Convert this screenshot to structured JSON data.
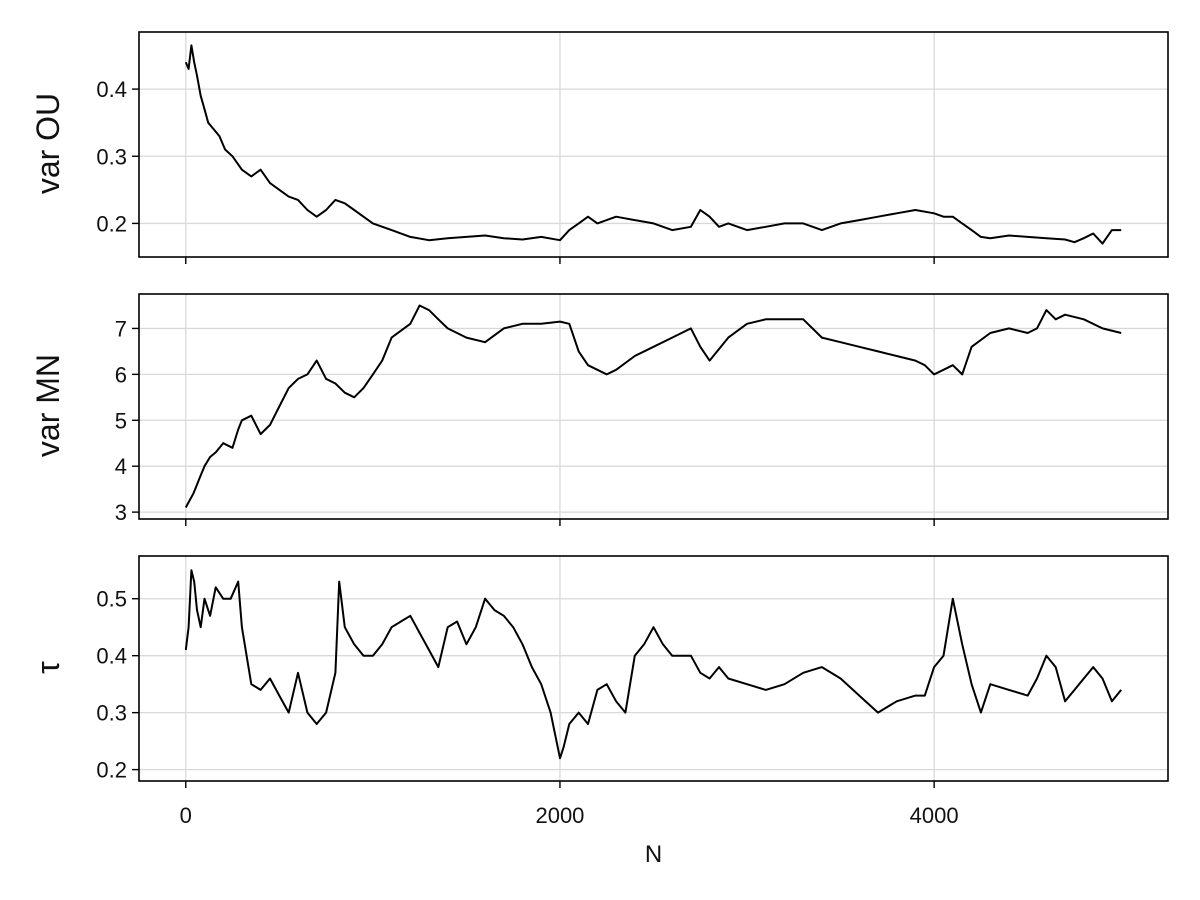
{
  "chart_data": [
    {
      "type": "line",
      "title": "",
      "xlabel": "",
      "ylabel": "var OU",
      "xlim": [
        -250,
        5250
      ],
      "ylim": [
        0.15,
        0.485
      ],
      "xticks": [
        0,
        2000,
        4000
      ],
      "yticks": [
        0.2,
        0.3,
        0.4
      ],
      "ytick_labels": [
        "0.2",
        "0.3",
        "0.4"
      ],
      "grid": true,
      "series": [
        {
          "x": [
            0,
            15,
            30,
            45,
            60,
            80,
            100,
            120,
            150,
            180,
            210,
            250,
            300,
            350,
            400,
            450,
            500,
            550,
            600,
            650,
            700,
            750,
            800,
            850,
            900,
            950,
            1000,
            1100,
            1200,
            1300,
            1400,
            1500,
            1600,
            1700,
            1800,
            1900,
            2000,
            2050,
            2100,
            2150,
            2200,
            2250,
            2300,
            2400,
            2500,
            2600,
            2700,
            2750,
            2800,
            2850,
            2900,
            3000,
            3100,
            3200,
            3300,
            3400,
            3500,
            3600,
            3700,
            3800,
            3900,
            4000,
            4050,
            4100,
            4150,
            4200,
            4250,
            4300,
            4400,
            4500,
            4600,
            4700,
            4750,
            4800,
            4850,
            4900,
            4950,
            5000
          ],
          "y": [
            0.44,
            0.43,
            0.465,
            0.44,
            0.42,
            0.39,
            0.37,
            0.35,
            0.34,
            0.33,
            0.31,
            0.3,
            0.28,
            0.27,
            0.28,
            0.26,
            0.25,
            0.24,
            0.235,
            0.22,
            0.21,
            0.22,
            0.235,
            0.23,
            0.22,
            0.21,
            0.2,
            0.19,
            0.18,
            0.175,
            0.178,
            0.18,
            0.182,
            0.178,
            0.176,
            0.18,
            0.175,
            0.19,
            0.2,
            0.21,
            0.2,
            0.205,
            0.21,
            0.205,
            0.2,
            0.19,
            0.195,
            0.22,
            0.21,
            0.195,
            0.2,
            0.19,
            0.195,
            0.2,
            0.2,
            0.19,
            0.2,
            0.205,
            0.21,
            0.215,
            0.22,
            0.215,
            0.21,
            0.21,
            0.2,
            0.19,
            0.18,
            0.178,
            0.182,
            0.18,
            0.178,
            0.176,
            0.172,
            0.178,
            0.185,
            0.17,
            0.19,
            0.19
          ]
        }
      ]
    },
    {
      "type": "line",
      "title": "",
      "xlabel": "",
      "ylabel": "var MN",
      "xlim": [
        -250,
        5250
      ],
      "ylim": [
        2.85,
        7.75
      ],
      "xticks": [
        0,
        2000,
        4000
      ],
      "yticks": [
        3,
        4,
        5,
        6,
        7
      ],
      "ytick_labels": [
        "3",
        "4",
        "5",
        "6",
        "7"
      ],
      "grid": true,
      "series": [
        {
          "x": [
            0,
            20,
            40,
            60,
            80,
            100,
            130,
            160,
            200,
            250,
            280,
            300,
            350,
            400,
            450,
            500,
            550,
            600,
            650,
            700,
            750,
            800,
            850,
            900,
            950,
            1000,
            1050,
            1100,
            1200,
            1250,
            1300,
            1350,
            1400,
            1450,
            1500,
            1600,
            1700,
            1800,
            1900,
            2000,
            2050,
            2100,
            2150,
            2200,
            2250,
            2300,
            2400,
            2500,
            2600,
            2700,
            2750,
            2800,
            2900,
            3000,
            3100,
            3200,
            3300,
            3400,
            3500,
            3600,
            3700,
            3800,
            3900,
            3950,
            4000,
            4050,
            4100,
            4150,
            4200,
            4300,
            4400,
            4500,
            4550,
            4600,
            4650,
            4700,
            4800,
            4900,
            5000
          ],
          "y": [
            3.1,
            3.25,
            3.4,
            3.6,
            3.8,
            4.0,
            4.2,
            4.3,
            4.5,
            4.4,
            4.8,
            5.0,
            5.1,
            4.7,
            4.9,
            5.3,
            5.7,
            5.9,
            6.0,
            6.3,
            5.9,
            5.8,
            5.6,
            5.5,
            5.7,
            6.0,
            6.3,
            6.8,
            7.1,
            7.5,
            7.4,
            7.2,
            7.0,
            6.9,
            6.8,
            6.7,
            7.0,
            7.1,
            7.1,
            7.15,
            7.1,
            6.5,
            6.2,
            6.1,
            6.0,
            6.1,
            6.4,
            6.6,
            6.8,
            7.0,
            6.6,
            6.3,
            6.8,
            7.1,
            7.2,
            7.2,
            7.2,
            6.8,
            6.7,
            6.6,
            6.5,
            6.4,
            6.3,
            6.2,
            6.0,
            6.1,
            6.2,
            6.0,
            6.6,
            6.9,
            7.0,
            6.9,
            7.0,
            7.4,
            7.2,
            7.3,
            7.2,
            7.0,
            6.9
          ]
        }
      ]
    },
    {
      "type": "line",
      "title": "",
      "xlabel": "N",
      "ylabel": "τ",
      "xlim": [
        -250,
        5250
      ],
      "ylim": [
        0.18,
        0.575
      ],
      "xticks": [
        0,
        2000,
        4000
      ],
      "xtick_labels": [
        "0",
        "2000",
        "4000"
      ],
      "yticks": [
        0.2,
        0.3,
        0.4,
        0.5
      ],
      "ytick_labels": [
        "0.2",
        "0.3",
        "0.4",
        "0.5"
      ],
      "grid": true,
      "series": [
        {
          "x": [
            0,
            15,
            30,
            45,
            60,
            80,
            100,
            130,
            160,
            200,
            240,
            280,
            300,
            350,
            400,
            450,
            500,
            550,
            600,
            650,
            700,
            750,
            800,
            820,
            850,
            900,
            950,
            1000,
            1050,
            1100,
            1150,
            1200,
            1250,
            1300,
            1350,
            1400,
            1450,
            1500,
            1550,
            1600,
            1650,
            1700,
            1750,
            1800,
            1850,
            1900,
            1950,
            2000,
            2020,
            2050,
            2100,
            2150,
            2200,
            2250,
            2300,
            2350,
            2400,
            2450,
            2500,
            2550,
            2600,
            2650,
            2700,
            2750,
            2800,
            2850,
            2900,
            3000,
            3100,
            3200,
            3300,
            3400,
            3500,
            3600,
            3700,
            3800,
            3900,
            3950,
            4000,
            4050,
            4100,
            4150,
            4200,
            4250,
            4300,
            4400,
            4500,
            4550,
            4600,
            4650,
            4700,
            4750,
            4800,
            4850,
            4900,
            4950,
            5000
          ],
          "y": [
            0.41,
            0.45,
            0.55,
            0.53,
            0.48,
            0.45,
            0.5,
            0.47,
            0.52,
            0.5,
            0.5,
            0.53,
            0.45,
            0.35,
            0.34,
            0.36,
            0.33,
            0.3,
            0.37,
            0.3,
            0.28,
            0.3,
            0.37,
            0.53,
            0.45,
            0.42,
            0.4,
            0.4,
            0.42,
            0.45,
            0.46,
            0.47,
            0.44,
            0.41,
            0.38,
            0.45,
            0.46,
            0.42,
            0.45,
            0.5,
            0.48,
            0.47,
            0.45,
            0.42,
            0.38,
            0.35,
            0.3,
            0.22,
            0.24,
            0.28,
            0.3,
            0.28,
            0.34,
            0.35,
            0.32,
            0.3,
            0.4,
            0.42,
            0.45,
            0.42,
            0.4,
            0.4,
            0.4,
            0.37,
            0.36,
            0.38,
            0.36,
            0.35,
            0.34,
            0.35,
            0.37,
            0.38,
            0.36,
            0.33,
            0.3,
            0.32,
            0.33,
            0.33,
            0.38,
            0.4,
            0.5,
            0.42,
            0.35,
            0.3,
            0.35,
            0.34,
            0.33,
            0.36,
            0.4,
            0.38,
            0.32,
            0.34,
            0.36,
            0.38,
            0.36,
            0.32,
            0.34
          ]
        }
      ]
    }
  ]
}
